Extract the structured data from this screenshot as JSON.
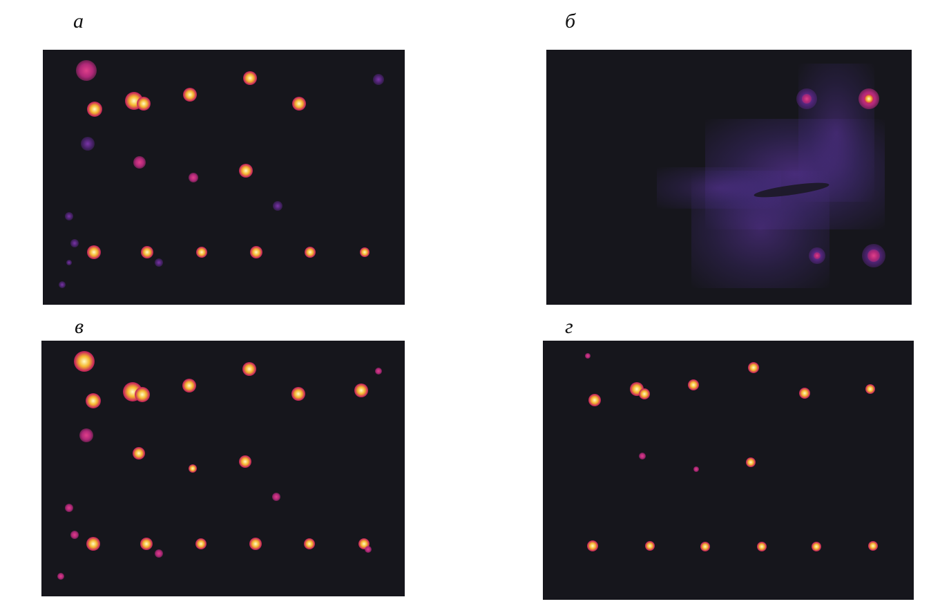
{
  "panels": [
    {
      "id": "a",
      "label": "а"
    },
    {
      "id": "b",
      "label": "б"
    },
    {
      "id": "v",
      "label": "в"
    },
    {
      "id": "g",
      "label": "г"
    }
  ],
  "colors": {
    "background": "#16161c",
    "spot_core": "#fffbc8",
    "spot_mid": "#f5b830",
    "spot_edge": "#c8285a",
    "faint": "#7a34a8"
  }
}
